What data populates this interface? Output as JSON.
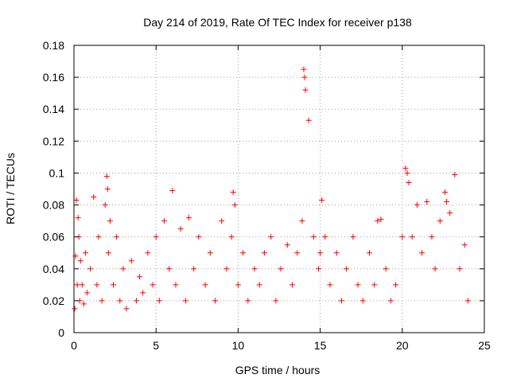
{
  "chart_data": {
    "type": "scatter",
    "title": "Day 214 of 2019, Rate Of TEC Index for receiver p138",
    "xlabel": "GPS time / hours",
    "ylabel": "ROTI / TECUs",
    "xlim": [
      0,
      25
    ],
    "ylim": [
      0,
      0.18
    ],
    "xticks": [
      0,
      5,
      10,
      15,
      20,
      25
    ],
    "xtick_labels": [
      "0",
      "5",
      "10",
      "15",
      "20",
      "25"
    ],
    "yticks": [
      0,
      0.02,
      0.04,
      0.06,
      0.08,
      0.1,
      0.12,
      0.14,
      0.16,
      0.18
    ],
    "ytick_labels": [
      "0",
      "0.02",
      "0.04",
      "0.06",
      "0.08",
      "0.1",
      "0.12",
      "0.14",
      "0.16",
      "0.18"
    ],
    "grid": true,
    "marker": "+",
    "color": "#ff0000",
    "series": [
      {
        "name": "ROTI",
        "x": [
          0.05,
          0.1,
          0.15,
          0.2,
          0.25,
          0.3,
          0.35,
          0.4,
          0.5,
          0.6,
          0.7,
          0.8,
          1.0,
          1.2,
          1.4,
          1.5,
          1.7,
          1.9,
          2.0,
          2.05,
          2.1,
          2.2,
          2.4,
          2.6,
          2.8,
          3.0,
          3.2,
          3.5,
          3.8,
          4.0,
          4.2,
          4.5,
          4.8,
          5.0,
          5.2,
          5.5,
          5.8,
          6.0,
          6.2,
          6.5,
          6.8,
          7.0,
          7.3,
          7.6,
          8.0,
          8.3,
          8.6,
          9.0,
          9.3,
          9.6,
          9.7,
          9.8,
          10.0,
          10.3,
          10.6,
          11.0,
          11.3,
          11.6,
          12.0,
          12.3,
          12.6,
          13.0,
          13.3,
          13.6,
          13.9,
          14.0,
          14.05,
          14.1,
          14.3,
          14.6,
          14.9,
          15.0,
          15.1,
          15.3,
          15.6,
          16.0,
          16.3,
          16.6,
          17.0,
          17.3,
          17.6,
          18.0,
          18.3,
          18.5,
          18.7,
          19.0,
          19.3,
          19.6,
          20.0,
          20.2,
          20.3,
          20.4,
          20.6,
          20.9,
          21.2,
          21.5,
          21.8,
          22.0,
          22.3,
          22.6,
          22.7,
          22.9,
          23.2,
          23.5,
          23.8,
          24.0
        ],
        "y": [
          0.015,
          0.048,
          0.083,
          0.03,
          0.072,
          0.06,
          0.02,
          0.045,
          0.03,
          0.018,
          0.05,
          0.025,
          0.04,
          0.085,
          0.03,
          0.06,
          0.02,
          0.08,
          0.098,
          0.09,
          0.05,
          0.07,
          0.03,
          0.06,
          0.02,
          0.04,
          0.015,
          0.045,
          0.02,
          0.035,
          0.025,
          0.05,
          0.03,
          0.06,
          0.02,
          0.07,
          0.04,
          0.089,
          0.03,
          0.065,
          0.02,
          0.072,
          0.04,
          0.06,
          0.03,
          0.05,
          0.02,
          0.07,
          0.04,
          0.06,
          0.088,
          0.08,
          0.03,
          0.05,
          0.02,
          0.04,
          0.03,
          0.05,
          0.06,
          0.02,
          0.04,
          0.055,
          0.03,
          0.05,
          0.07,
          0.165,
          0.16,
          0.152,
          0.133,
          0.06,
          0.04,
          0.05,
          0.083,
          0.06,
          0.03,
          0.05,
          0.02,
          0.04,
          0.06,
          0.03,
          0.02,
          0.05,
          0.03,
          0.07,
          0.071,
          0.04,
          0.02,
          0.03,
          0.06,
          0.103,
          0.1,
          0.094,
          0.06,
          0.08,
          0.05,
          0.082,
          0.06,
          0.04,
          0.07,
          0.088,
          0.082,
          0.075,
          0.099,
          0.04,
          0.055,
          0.02
        ]
      }
    ]
  }
}
